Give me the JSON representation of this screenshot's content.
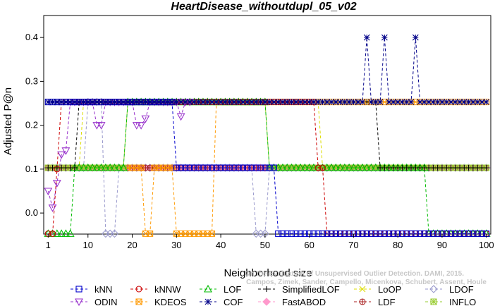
{
  "chart_data": {
    "type": "line",
    "title": "HeartDisease_withoutdupl_05_v02",
    "xlabel": "Neighborhood size",
    "ylabel": "Adjusted P@n",
    "xlim": [
      0,
      101
    ],
    "ylim": [
      -0.048,
      0.45
    ],
    "x_ticks": [
      1,
      10,
      20,
      30,
      40,
      50,
      60,
      70,
      80,
      90,
      100
    ],
    "y_ticks": [
      0.0,
      0.1,
      0.2,
      0.3,
      0.4
    ],
    "x_tick_labels": [
      "1",
      "10",
      "20",
      "30",
      "40",
      "50",
      "60",
      "70",
      "80",
      "90",
      "100"
    ],
    "y_tick_labels": [
      "0.0",
      "0.1",
      "0.2",
      "0.3",
      "0.4"
    ],
    "grid": false,
    "legend_position": "bottom",
    "credit": [
      "Campos, Zimek, Sander, Campello, Micenkova, Schubert, Assent, Houle",
      "On the Evaluation of Unsupervised Outlier Detection. DAMI, 2015."
    ],
    "series": [
      {
        "name": "kNN",
        "color": "#0000cc",
        "marker": "square",
        "segments": [
          [
            1,
            29,
            0.253
          ],
          [
            30,
            52,
            0.103
          ],
          [
            53,
            100,
            -0.047
          ]
        ]
      },
      {
        "name": "kNNW",
        "color": "#cc0000",
        "marker": "circle",
        "segments": [
          [
            1,
            2,
            -0.047
          ],
          [
            3,
            3,
            0.1
          ],
          [
            4,
            61,
            0.253
          ],
          [
            62,
            63,
            0.103
          ],
          [
            64,
            100,
            -0.047
          ]
        ]
      },
      {
        "name": "LOF",
        "color": "#00bb00",
        "marker": "triangle-up",
        "segments": [
          [
            1,
            6,
            -0.047
          ],
          [
            7,
            18,
            0.103
          ],
          [
            19,
            50,
            0.253
          ],
          [
            51,
            86,
            0.103
          ],
          [
            87,
            100,
            -0.047
          ]
        ]
      },
      {
        "name": "SimplifiedLOF",
        "color": "#000000",
        "marker": "plus",
        "segments": [
          [
            1,
            7,
            0.103
          ],
          [
            8,
            75,
            0.253
          ],
          [
            76,
            100,
            0.103
          ]
        ]
      },
      {
        "name": "LoOP",
        "color": "#dddd00",
        "marker": "x",
        "segments": [
          [
            1,
            8,
            0.103
          ],
          [
            9,
            62,
            0.253
          ],
          [
            63,
            100,
            0.103
          ]
        ]
      },
      {
        "name": "LDOF",
        "color": "#9999cc",
        "marker": "diamond",
        "segments": [
          [
            1,
            9,
            0.103
          ],
          [
            10,
            13,
            0.253
          ],
          [
            14,
            16,
            -0.047
          ],
          [
            17,
            47,
            0.103
          ],
          [
            48,
            50,
            -0.047
          ],
          [
            51,
            100,
            0.103
          ]
        ]
      },
      {
        "name": "ODIN",
        "color": "#9933cc",
        "marker": "triangle-down",
        "points": [
          [
            1,
            0.05
          ],
          [
            2,
            0.012
          ],
          [
            3,
            0.068
          ],
          [
            4,
            0.133
          ],
          [
            5,
            0.142
          ],
          [
            6,
            0.253
          ],
          [
            7,
            0.253
          ],
          [
            8,
            0.253
          ],
          [
            9,
            0.253
          ],
          [
            10,
            0.253
          ],
          [
            11,
            0.253
          ],
          [
            12,
            0.2
          ],
          [
            13,
            0.2
          ],
          [
            14,
            0.253
          ],
          [
            15,
            0.253
          ],
          [
            16,
            0.253
          ],
          [
            17,
            0.253
          ],
          [
            18,
            0.253
          ],
          [
            19,
            0.253
          ],
          [
            20,
            0.253
          ],
          [
            21,
            0.2
          ],
          [
            22,
            0.2
          ],
          [
            23,
            0.215
          ],
          [
            24,
            0.253
          ],
          [
            25,
            0.253
          ],
          [
            26,
            0.253
          ],
          [
            27,
            0.253
          ],
          [
            28,
            0.253
          ],
          [
            29,
            0.253
          ],
          [
            30,
            0.253
          ],
          [
            31,
            0.22
          ],
          [
            32,
            0.253
          ],
          [
            33,
            0.253
          ]
        ]
      },
      {
        "name": "KDEOS",
        "color": "#ff9900",
        "marker": "box-x",
        "segments": [
          [
            1,
            22,
            0.103
          ],
          [
            23,
            24,
            -0.047
          ],
          [
            25,
            29,
            0.103
          ],
          [
            30,
            38,
            -0.047
          ],
          [
            39,
            100,
            0.253
          ]
        ]
      },
      {
        "name": "COF",
        "color": "#000088",
        "marker": "asterisk",
        "segments": [
          [
            1,
            72,
            0.253
          ],
          [
            74,
            76,
            0.253
          ],
          [
            78,
            83,
            0.253
          ],
          [
            85,
            100,
            0.253
          ]
        ],
        "peaks": [
          [
            73,
            0.4
          ],
          [
            77,
            0.4
          ],
          [
            84,
            0.4
          ]
        ]
      },
      {
        "name": "FastABOD",
        "color": "#ff99cc",
        "marker": "diamond-filled",
        "segments": [
          [
            1,
            100,
            0.103
          ]
        ]
      },
      {
        "name": "LDF",
        "color": "#aa2222",
        "marker": "circle-plus",
        "segments": [
          [
            1,
            100,
            0.103
          ]
        ]
      },
      {
        "name": "INFLO",
        "color": "#99cc33",
        "marker": "box-asterisk",
        "segments": [
          [
            1,
            18,
            0.103
          ],
          [
            19,
            50,
            0.253
          ],
          [
            51,
            100,
            0.103
          ]
        ]
      }
    ]
  }
}
